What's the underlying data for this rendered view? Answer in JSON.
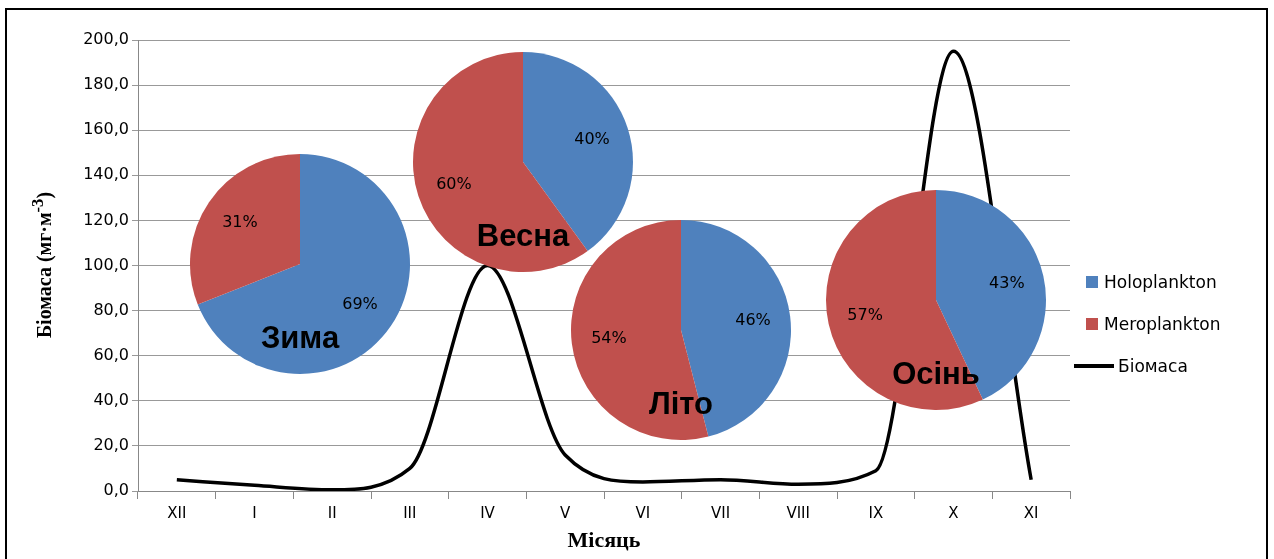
{
  "chart_data": [
    {
      "type": "line",
      "xlabel": "Місяць",
      "ylabel": "Біомаса  (мг·м$^{-3}$)",
      "categories": [
        "XII",
        "I",
        "II",
        "III",
        "IV",
        "V",
        "VI",
        "VII",
        "VIII",
        "IX",
        "X",
        "XI"
      ],
      "series": [
        {
          "name": "Біомаса",
          "color": "#000000",
          "values": [
            5,
            2.5,
            0.5,
            10,
            100,
            16,
            4,
            5,
            3,
            9,
            195,
            5
          ]
        }
      ],
      "ylim": [
        0,
        200
      ],
      "yticks": [
        {
          "value": 0,
          "label": "0,0"
        },
        {
          "value": 20,
          "label": "20,0"
        },
        {
          "value": 40,
          "label": "40,0"
        },
        {
          "value": 60,
          "label": "60,0"
        },
        {
          "value": 80,
          "label": "80,0"
        },
        {
          "value": 100,
          "label": "100,0"
        },
        {
          "value": 120,
          "label": "120,0"
        },
        {
          "value": 140,
          "label": "140,0"
        },
        {
          "value": 160,
          "label": "160,0"
        },
        {
          "value": 180,
          "label": "180,0"
        },
        {
          "value": 200,
          "label": "200,0"
        }
      ],
      "grid": "y",
      "legend": "right",
      "marker": "none",
      "line_style": "solid"
    },
    {
      "type": "pie",
      "title": "Зима",
      "legend": "right",
      "categories": [
        "Holoplankton",
        "Meroplankton"
      ],
      "values": [
        69,
        31
      ],
      "colors": [
        "#4f81bd",
        "#c0504d"
      ],
      "value_labels": [
        "69%",
        "31%"
      ]
    },
    {
      "type": "pie",
      "title": "Весна",
      "categories": [
        null,
        null
      ],
      "values": [
        40,
        60
      ],
      "colors": [
        "#4f81bd",
        "#c0504d"
      ],
      "value_labels": [
        "40%",
        "60%"
      ]
    },
    {
      "type": "pie",
      "title": "Літо",
      "categories": [
        null,
        null
      ],
      "values": [
        46,
        54
      ],
      "colors": [
        "#4f81bd",
        "#c0504d"
      ],
      "value_labels": [
        "46%",
        "54%"
      ]
    },
    {
      "type": "pie",
      "title": "Осінь",
      "categories": [
        null,
        null
      ],
      "values": [
        43,
        57
      ],
      "colors": [
        "#4f81bd",
        "#c0504d"
      ],
      "value_labels": [
        "43%",
        "57%"
      ]
    }
  ]
}
